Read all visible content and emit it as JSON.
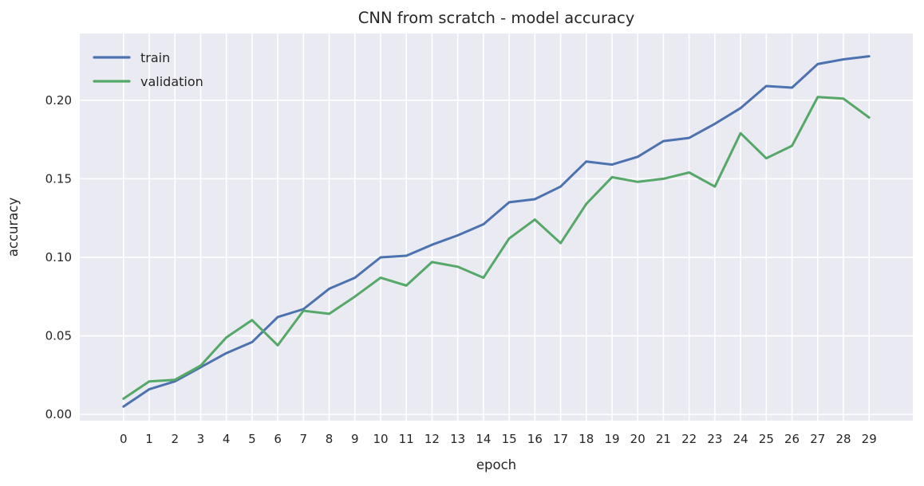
{
  "figure": {
    "title": "CNN from scratch - model accuracy",
    "xlabel": "epoch",
    "ylabel": "accuracy"
  },
  "legend": {
    "position": "upper-left",
    "entries": [
      {
        "label": "train",
        "color": "#4C72B0"
      },
      {
        "label": "validation",
        "color": "#55A868"
      }
    ]
  },
  "colors": {
    "plot_background": "#EAEAF2",
    "gridline": "#FFFFFF",
    "text": "#262626",
    "train": "#4C72B0",
    "validation": "#55A868"
  },
  "chart_data": {
    "type": "line",
    "title": "CNN from scratch - model accuracy",
    "xlabel": "epoch",
    "ylabel": "accuracy",
    "x": [
      0,
      1,
      2,
      3,
      4,
      5,
      6,
      7,
      8,
      9,
      10,
      11,
      12,
      13,
      14,
      15,
      16,
      17,
      18,
      19,
      20,
      21,
      22,
      23,
      24,
      25,
      26,
      27,
      28,
      29
    ],
    "series": [
      {
        "name": "train",
        "color": "#4C72B0",
        "values": [
          0.005,
          0.016,
          0.021,
          0.03,
          0.039,
          0.046,
          0.062,
          0.067,
          0.08,
          0.087,
          0.1,
          0.101,
          0.108,
          0.114,
          0.121,
          0.135,
          0.137,
          0.145,
          0.161,
          0.159,
          0.164,
          0.174,
          0.176,
          0.185,
          0.195,
          0.209,
          0.208,
          0.223,
          0.226,
          0.228
        ]
      },
      {
        "name": "validation",
        "color": "#55A868",
        "values": [
          0.01,
          0.021,
          0.022,
          0.031,
          0.049,
          0.06,
          0.044,
          0.066,
          0.064,
          0.075,
          0.087,
          0.082,
          0.097,
          0.094,
          0.087,
          0.112,
          0.124,
          0.109,
          0.134,
          0.151,
          0.148,
          0.15,
          0.154,
          0.145,
          0.179,
          0.163,
          0.171,
          0.202,
          0.201,
          0.189
        ]
      }
    ],
    "xticks": [
      0,
      1,
      2,
      3,
      4,
      5,
      6,
      7,
      8,
      9,
      10,
      11,
      12,
      13,
      14,
      15,
      16,
      17,
      18,
      19,
      20,
      21,
      22,
      23,
      24,
      25,
      26,
      27,
      28,
      29
    ],
    "ytick_values": [
      0.0,
      0.05,
      0.1,
      0.15,
      0.2
    ],
    "ytick_labels": [
      "0.00",
      "0.05",
      "0.10",
      "0.15",
      "0.20"
    ],
    "xlim": [
      -1.7,
      30.7
    ],
    "ylim": [
      -0.004,
      0.2425
    ],
    "grid": true,
    "legend_position": "upper left"
  }
}
